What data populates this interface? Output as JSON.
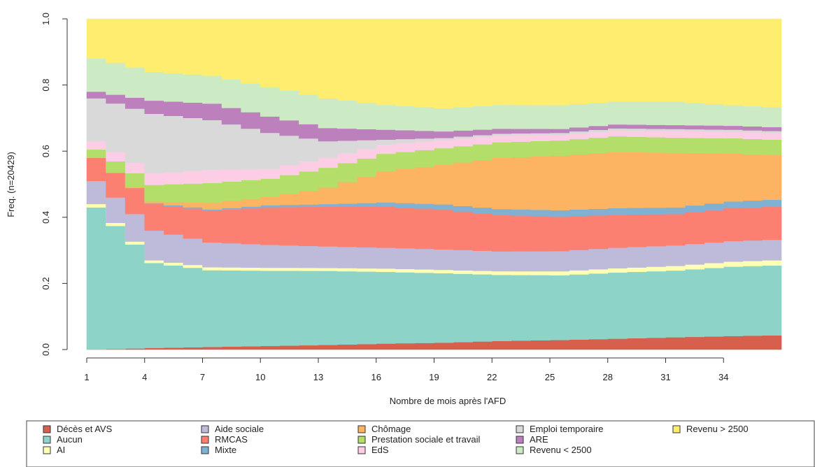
{
  "chart_data": {
    "type": "area",
    "title": "",
    "xlabel": "Nombre de mois après l'AFD",
    "ylabel": "Freq. (n=20429)",
    "xlim": [
      1,
      37
    ],
    "ylim": [
      0,
      1
    ],
    "x_ticks": [
      1,
      4,
      7,
      10,
      13,
      16,
      19,
      22,
      25,
      28,
      31,
      34
    ],
    "y_ticks": [
      0.0,
      0.2,
      0.4,
      0.6,
      0.8,
      1.0
    ],
    "y_tick_labels": [
      "0.0",
      "0.2",
      "0.4",
      "0.6",
      "0.8",
      "1.0"
    ],
    "legend_position": "bottom",
    "step": true,
    "stacked": true,
    "x": [
      1,
      4,
      7,
      10,
      13,
      16,
      19,
      22,
      25,
      28,
      31,
      34,
      37
    ],
    "series": [
      {
        "name": "Décès et AVS",
        "color": "#d6604d",
        "values": [
          0.0,
          0.005,
          0.008,
          0.011,
          0.014,
          0.018,
          0.021,
          0.026,
          0.029,
          0.033,
          0.037,
          0.041,
          0.044
        ]
      },
      {
        "name": "Aucun",
        "color": "#8dd3c7",
        "values": [
          0.43,
          0.257,
          0.232,
          0.23,
          0.224,
          0.217,
          0.21,
          0.2,
          0.196,
          0.2,
          0.202,
          0.21,
          0.212
        ]
      },
      {
        "name": "AI",
        "color": "#ffffb3",
        "values": [
          0.01,
          0.008,
          0.009,
          0.009,
          0.009,
          0.01,
          0.01,
          0.011,
          0.012,
          0.013,
          0.014,
          0.015,
          0.016
        ]
      },
      {
        "name": "Aide sociale",
        "color": "#bebada",
        "values": [
          0.07,
          0.09,
          0.075,
          0.07,
          0.065,
          0.063,
          0.062,
          0.06,
          0.061,
          0.062,
          0.062,
          0.062,
          0.062
        ]
      },
      {
        "name": "RMCAS",
        "color": "#fb8072",
        "values": [
          0.07,
          0.08,
          0.096,
          0.115,
          0.12,
          0.125,
          0.12,
          0.11,
          0.104,
          0.1,
          0.095,
          0.1,
          0.1
        ]
      },
      {
        "name": "Mixte",
        "color": "#80b1d3",
        "values": [
          0.0,
          0.003,
          0.004,
          0.006,
          0.008,
          0.012,
          0.016,
          0.018,
          0.02,
          0.02,
          0.02,
          0.02,
          0.022
        ]
      },
      {
        "name": "Chômage",
        "color": "#fdb462",
        "values": [
          0.0,
          0.005,
          0.02,
          0.025,
          0.05,
          0.095,
          0.12,
          0.155,
          0.165,
          0.17,
          0.165,
          0.145,
          0.13
        ]
      },
      {
        "name": "Prestation sociale et travail",
        "color": "#b3de69",
        "values": [
          0.025,
          0.05,
          0.06,
          0.056,
          0.06,
          0.052,
          0.05,
          0.047,
          0.046,
          0.047,
          0.046,
          0.046,
          0.047
        ]
      },
      {
        "name": "EdS",
        "color": "#fccde5",
        "values": [
          0.025,
          0.035,
          0.04,
          0.03,
          0.03,
          0.028,
          0.025,
          0.02,
          0.017,
          0.018,
          0.02,
          0.02,
          0.02
        ]
      },
      {
        "name": "Emploi temporaire",
        "color": "#d9d9d9",
        "values": [
          0.13,
          0.18,
          0.15,
          0.11,
          0.05,
          0.015,
          0.006,
          0.006,
          0.006,
          0.006,
          0.006,
          0.006,
          0.006
        ]
      },
      {
        "name": "ARE",
        "color": "#bc80bd",
        "values": [
          0.02,
          0.04,
          0.05,
          0.05,
          0.04,
          0.03,
          0.02,
          0.015,
          0.012,
          0.012,
          0.012,
          0.012,
          0.012
        ]
      },
      {
        "name": "Revenu < 2500",
        "color": "#ccebc5",
        "values": [
          0.1,
          0.087,
          0.084,
          0.09,
          0.09,
          0.075,
          0.07,
          0.072,
          0.072,
          0.069,
          0.071,
          0.062,
          0.059
        ]
      },
      {
        "name": "Revenu > 2500",
        "color": "#ffed6f",
        "values": [
          0.12,
          0.16,
          0.172,
          0.208,
          0.24,
          0.26,
          0.27,
          0.26,
          0.261,
          0.25,
          0.25,
          0.261,
          0.27
        ]
      }
    ],
    "legend_layout": [
      [
        "Décès et AVS",
        "Aucun",
        "AI"
      ],
      [
        "Aide sociale",
        "RMCAS",
        "Mixte"
      ],
      [
        "Chômage",
        "Prestation sociale et travail",
        "EdS"
      ],
      [
        "Emploi temporaire",
        "ARE",
        "Revenu < 2500"
      ],
      [
        "Revenu > 2500"
      ]
    ]
  }
}
